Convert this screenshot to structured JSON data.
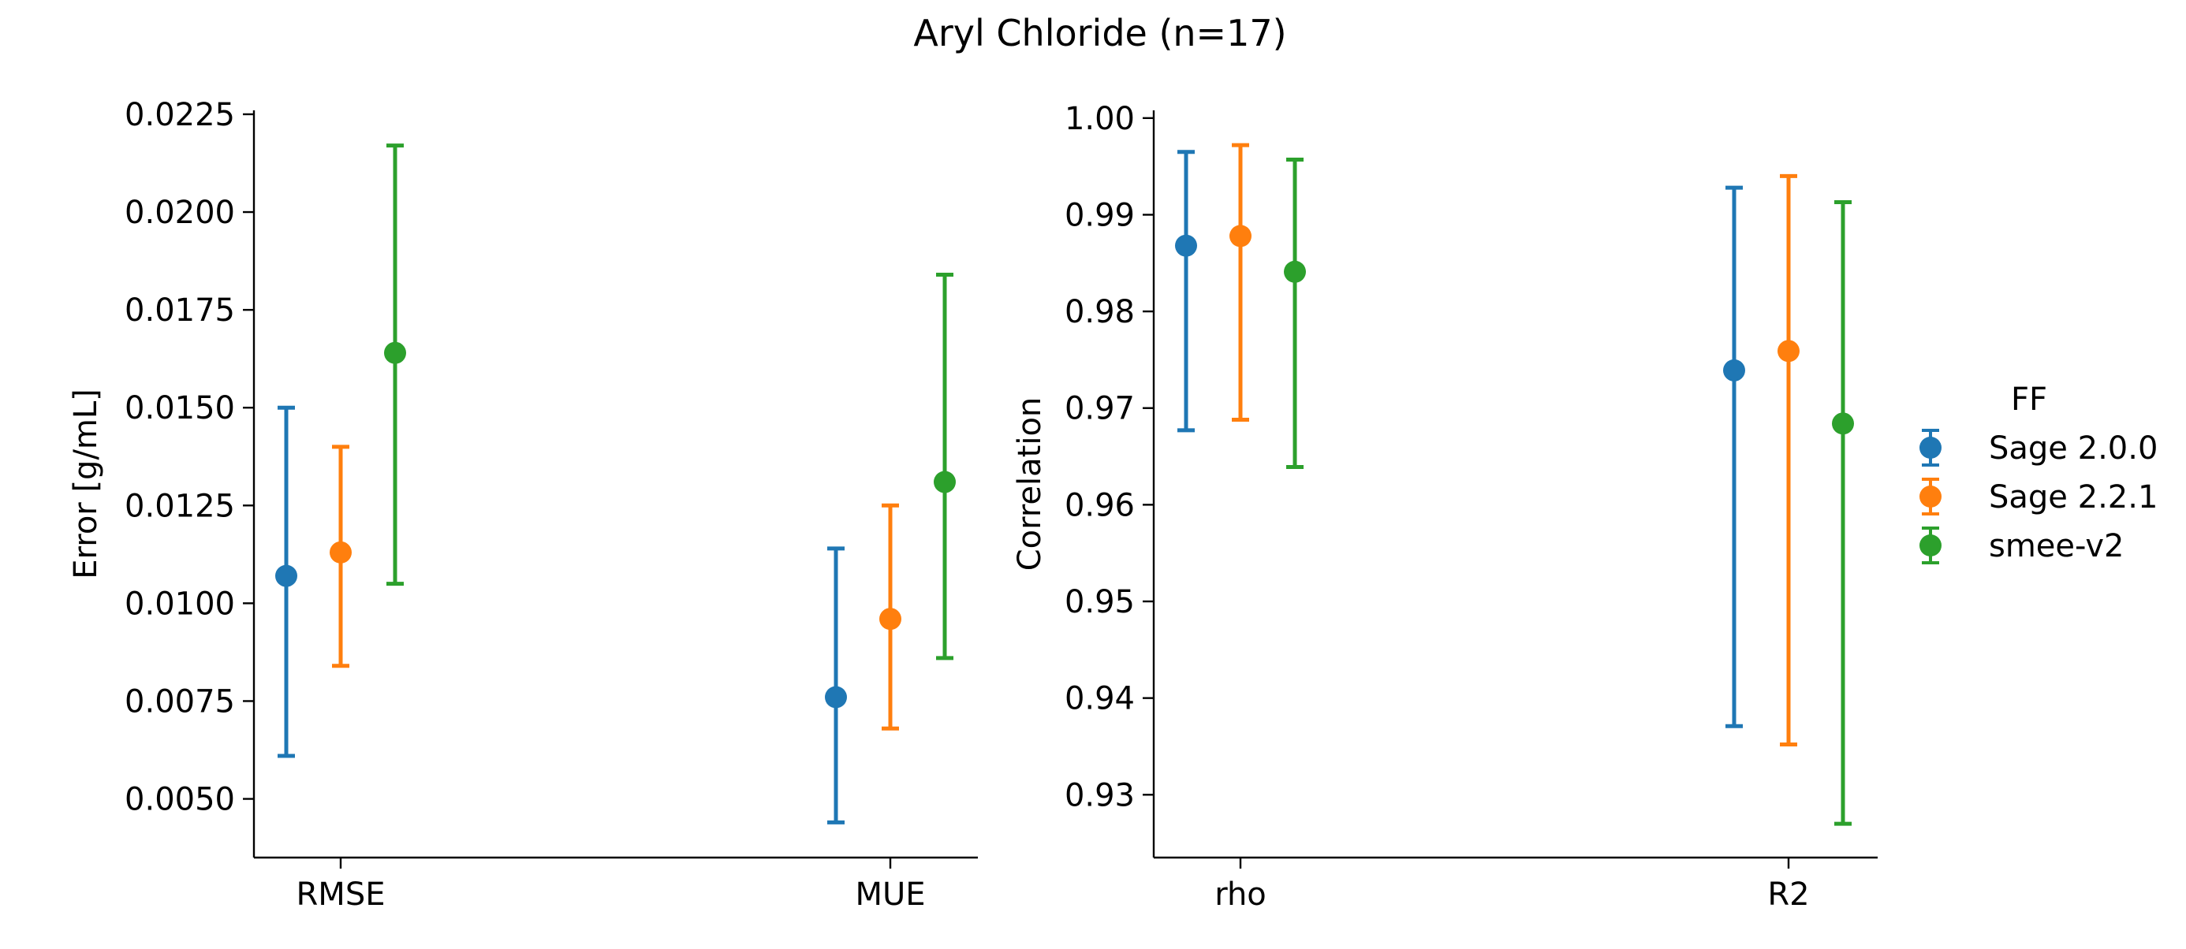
{
  "title": "Aryl Chloride (n=17)",
  "colors": {
    "axis": "#000000",
    "background": "#ffffff"
  },
  "legend": {
    "title": "FF",
    "placement": "right-center",
    "entries": [
      {
        "label": "Sage 2.0.0",
        "color": "#1f77b4"
      },
      {
        "label": "Sage 2.2.1",
        "color": "#ff7f0e"
      },
      {
        "label": "smee-v2",
        "color": "#2ca02c"
      }
    ]
  },
  "chart_data": [
    {
      "type": "scatter",
      "subtype": "point-with-error-bars",
      "ylabel": "Error [g/mL]",
      "xlabel": "",
      "categories": [
        "RMSE",
        "MUE"
      ],
      "ylim": [
        0.0035,
        0.0226
      ],
      "yticks": [
        "0.0050",
        "0.0075",
        "0.0100",
        "0.0125",
        "0.0150",
        "0.0175",
        "0.0200",
        "0.0225"
      ],
      "grid": false,
      "series": [
        {
          "name": "Sage 2.0.0",
          "color": "#1f77b4",
          "values": [
            0.0107,
            0.0076
          ],
          "lower": [
            0.0061,
            0.0044
          ],
          "upper": [
            0.015,
            0.0114
          ]
        },
        {
          "name": "Sage 2.2.1",
          "color": "#ff7f0e",
          "values": [
            0.0113,
            0.0096
          ],
          "lower": [
            0.0084,
            0.0068
          ],
          "upper": [
            0.014,
            0.0125
          ]
        },
        {
          "name": "smee-v2",
          "color": "#2ca02c",
          "values": [
            0.0164,
            0.0131
          ],
          "lower": [
            0.0105,
            0.0086
          ],
          "upper": [
            0.0217,
            0.0184
          ]
        }
      ]
    },
    {
      "type": "scatter",
      "subtype": "point-with-error-bars",
      "ylabel": "Correlation",
      "xlabel": "",
      "categories": [
        "rho",
        "R2"
      ],
      "ylim": [
        0.9235,
        1.0008
      ],
      "yticks": [
        "0.93",
        "0.94",
        "0.95",
        "0.96",
        "0.97",
        "0.98",
        "0.99",
        "1.00"
      ],
      "grid": false,
      "series": [
        {
          "name": "Sage 2.0.0",
          "color": "#1f77b4",
          "values": [
            0.9868,
            0.9739
          ],
          "lower": [
            0.9677,
            0.9371
          ],
          "upper": [
            0.9965,
            0.9928
          ]
        },
        {
          "name": "Sage 2.2.1",
          "color": "#ff7f0e",
          "values": [
            0.9878,
            0.9759
          ],
          "lower": [
            0.9688,
            0.9352
          ],
          "upper": [
            0.9972,
            0.994
          ]
        },
        {
          "name": "smee-v2",
          "color": "#2ca02c",
          "values": [
            0.9841,
            0.9684
          ],
          "lower": [
            0.9639,
            0.927
          ],
          "upper": [
            0.9957,
            0.9913
          ]
        }
      ]
    }
  ]
}
